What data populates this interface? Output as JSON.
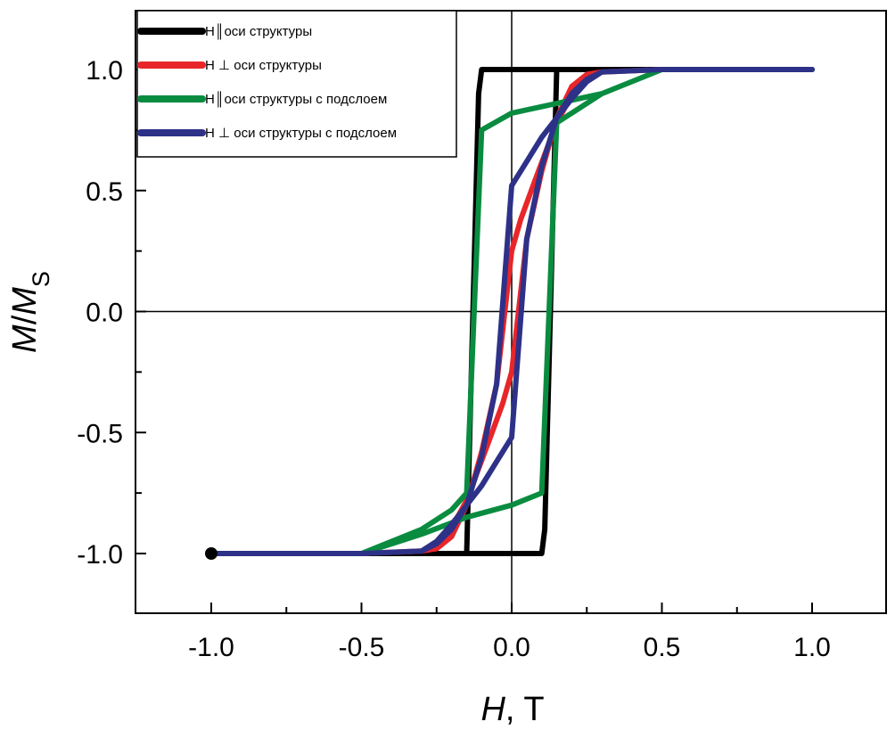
{
  "chart_data": {
    "type": "line",
    "xlabel": {
      "var": "H",
      "unit": ", T"
    },
    "ylabel": {
      "var1": "M",
      "sep": "/",
      "var2": "M",
      "sub": "S"
    },
    "xlim": [
      -1.25,
      1.25
    ],
    "ylim": [
      -1.25,
      1.25
    ],
    "xticks": [
      -1.0,
      -0.5,
      0.0,
      0.5,
      1.0
    ],
    "yticks": [
      -1.0,
      -0.5,
      0.0,
      0.5,
      1.0
    ],
    "xtick_labels": [
      "-1.0",
      "-0.5",
      "0.0",
      "0.5",
      "1.0"
    ],
    "ytick_labels": [
      "-1.0",
      "-0.5",
      "0.0",
      "0.5",
      "1.0"
    ],
    "zero_lines": true,
    "legend_position": "top-left",
    "series": [
      {
        "name": "H║оси структуры",
        "color": "#000000",
        "x": [
          -1.0,
          -0.5,
          -0.2,
          0.0,
          0.1,
          0.11,
          0.15,
          0.3,
          0.5,
          1.0,
          1.0,
          0.5,
          0.3,
          0.0,
          -0.1,
          -0.11,
          -0.15,
          -0.3,
          -1.0
        ],
        "y": [
          -1.0,
          -1.0,
          -1.0,
          -1.0,
          -1.0,
          -0.9,
          1.0,
          1.0,
          1.0,
          1.0,
          1.0,
          1.0,
          1.0,
          1.0,
          1.0,
          0.9,
          -1.0,
          -1.0,
          -1.0
        ]
      },
      {
        "name": "H ⊥ оси структуры",
        "color": "#e8262a",
        "x": [
          -1.0,
          -0.5,
          -0.3,
          -0.22,
          -0.15,
          -0.08,
          -0.03,
          0.0,
          0.05,
          0.1,
          0.15,
          0.2,
          0.25,
          0.3,
          0.5,
          1.0,
          1.0,
          0.5,
          0.3,
          0.22,
          0.15,
          0.08,
          0.03,
          0.0,
          -0.05,
          -0.1,
          -0.15,
          -0.2,
          -0.25,
          -0.3,
          -0.5,
          -1.0
        ],
        "y": [
          -1.0,
          -1.0,
          -0.99,
          -0.94,
          -0.78,
          -0.55,
          -0.38,
          -0.25,
          0.3,
          0.58,
          0.8,
          0.93,
          0.98,
          0.99,
          1.0,
          1.0,
          1.0,
          1.0,
          0.99,
          0.94,
          0.78,
          0.55,
          0.38,
          0.25,
          -0.3,
          -0.58,
          -0.8,
          -0.93,
          -0.98,
          -0.99,
          -1.0,
          -1.0
        ]
      },
      {
        "name": "H║оси структуры с подслоем",
        "color": "#0a8c40",
        "x": [
          -1.0,
          -0.5,
          -0.3,
          -0.15,
          0.0,
          0.1,
          0.15,
          0.2,
          0.3,
          0.5,
          1.0,
          1.0,
          0.5,
          0.3,
          0.0,
          -0.1,
          -0.15,
          -0.2,
          -0.3,
          -0.5,
          -1.0
        ],
        "y": [
          -1.0,
          -1.0,
          -0.92,
          -0.85,
          -0.8,
          -0.75,
          0.78,
          0.82,
          0.9,
          1.0,
          1.0,
          1.0,
          1.0,
          0.9,
          0.82,
          0.75,
          -0.75,
          -0.82,
          -0.9,
          -1.0,
          -1.0
        ]
      },
      {
        "name": "H ⊥ оси структуры с подслоем",
        "color": "#2e3188",
        "x": [
          -1.0,
          -0.5,
          -0.3,
          -0.25,
          -0.2,
          -0.15,
          -0.1,
          -0.05,
          0.0,
          0.05,
          0.1,
          0.15,
          0.2,
          0.25,
          0.3,
          0.5,
          1.0,
          1.0,
          0.5,
          0.3,
          0.25,
          0.2,
          0.15,
          0.1,
          0.05,
          0.0,
          -0.05,
          -0.1,
          -0.15,
          -0.2,
          -0.25,
          -0.3,
          -0.5,
          -1.0
        ],
        "y": [
          -1.0,
          -1.0,
          -0.99,
          -0.96,
          -0.9,
          -0.8,
          -0.6,
          -0.3,
          0.52,
          0.62,
          0.72,
          0.8,
          0.88,
          0.95,
          0.99,
          1.0,
          1.0,
          1.0,
          1.0,
          0.99,
          0.96,
          0.9,
          0.8,
          0.6,
          0.3,
          -0.52,
          -0.62,
          -0.72,
          -0.8,
          -0.88,
          -0.95,
          -0.99,
          -1.0,
          -1.0
        ]
      }
    ]
  }
}
